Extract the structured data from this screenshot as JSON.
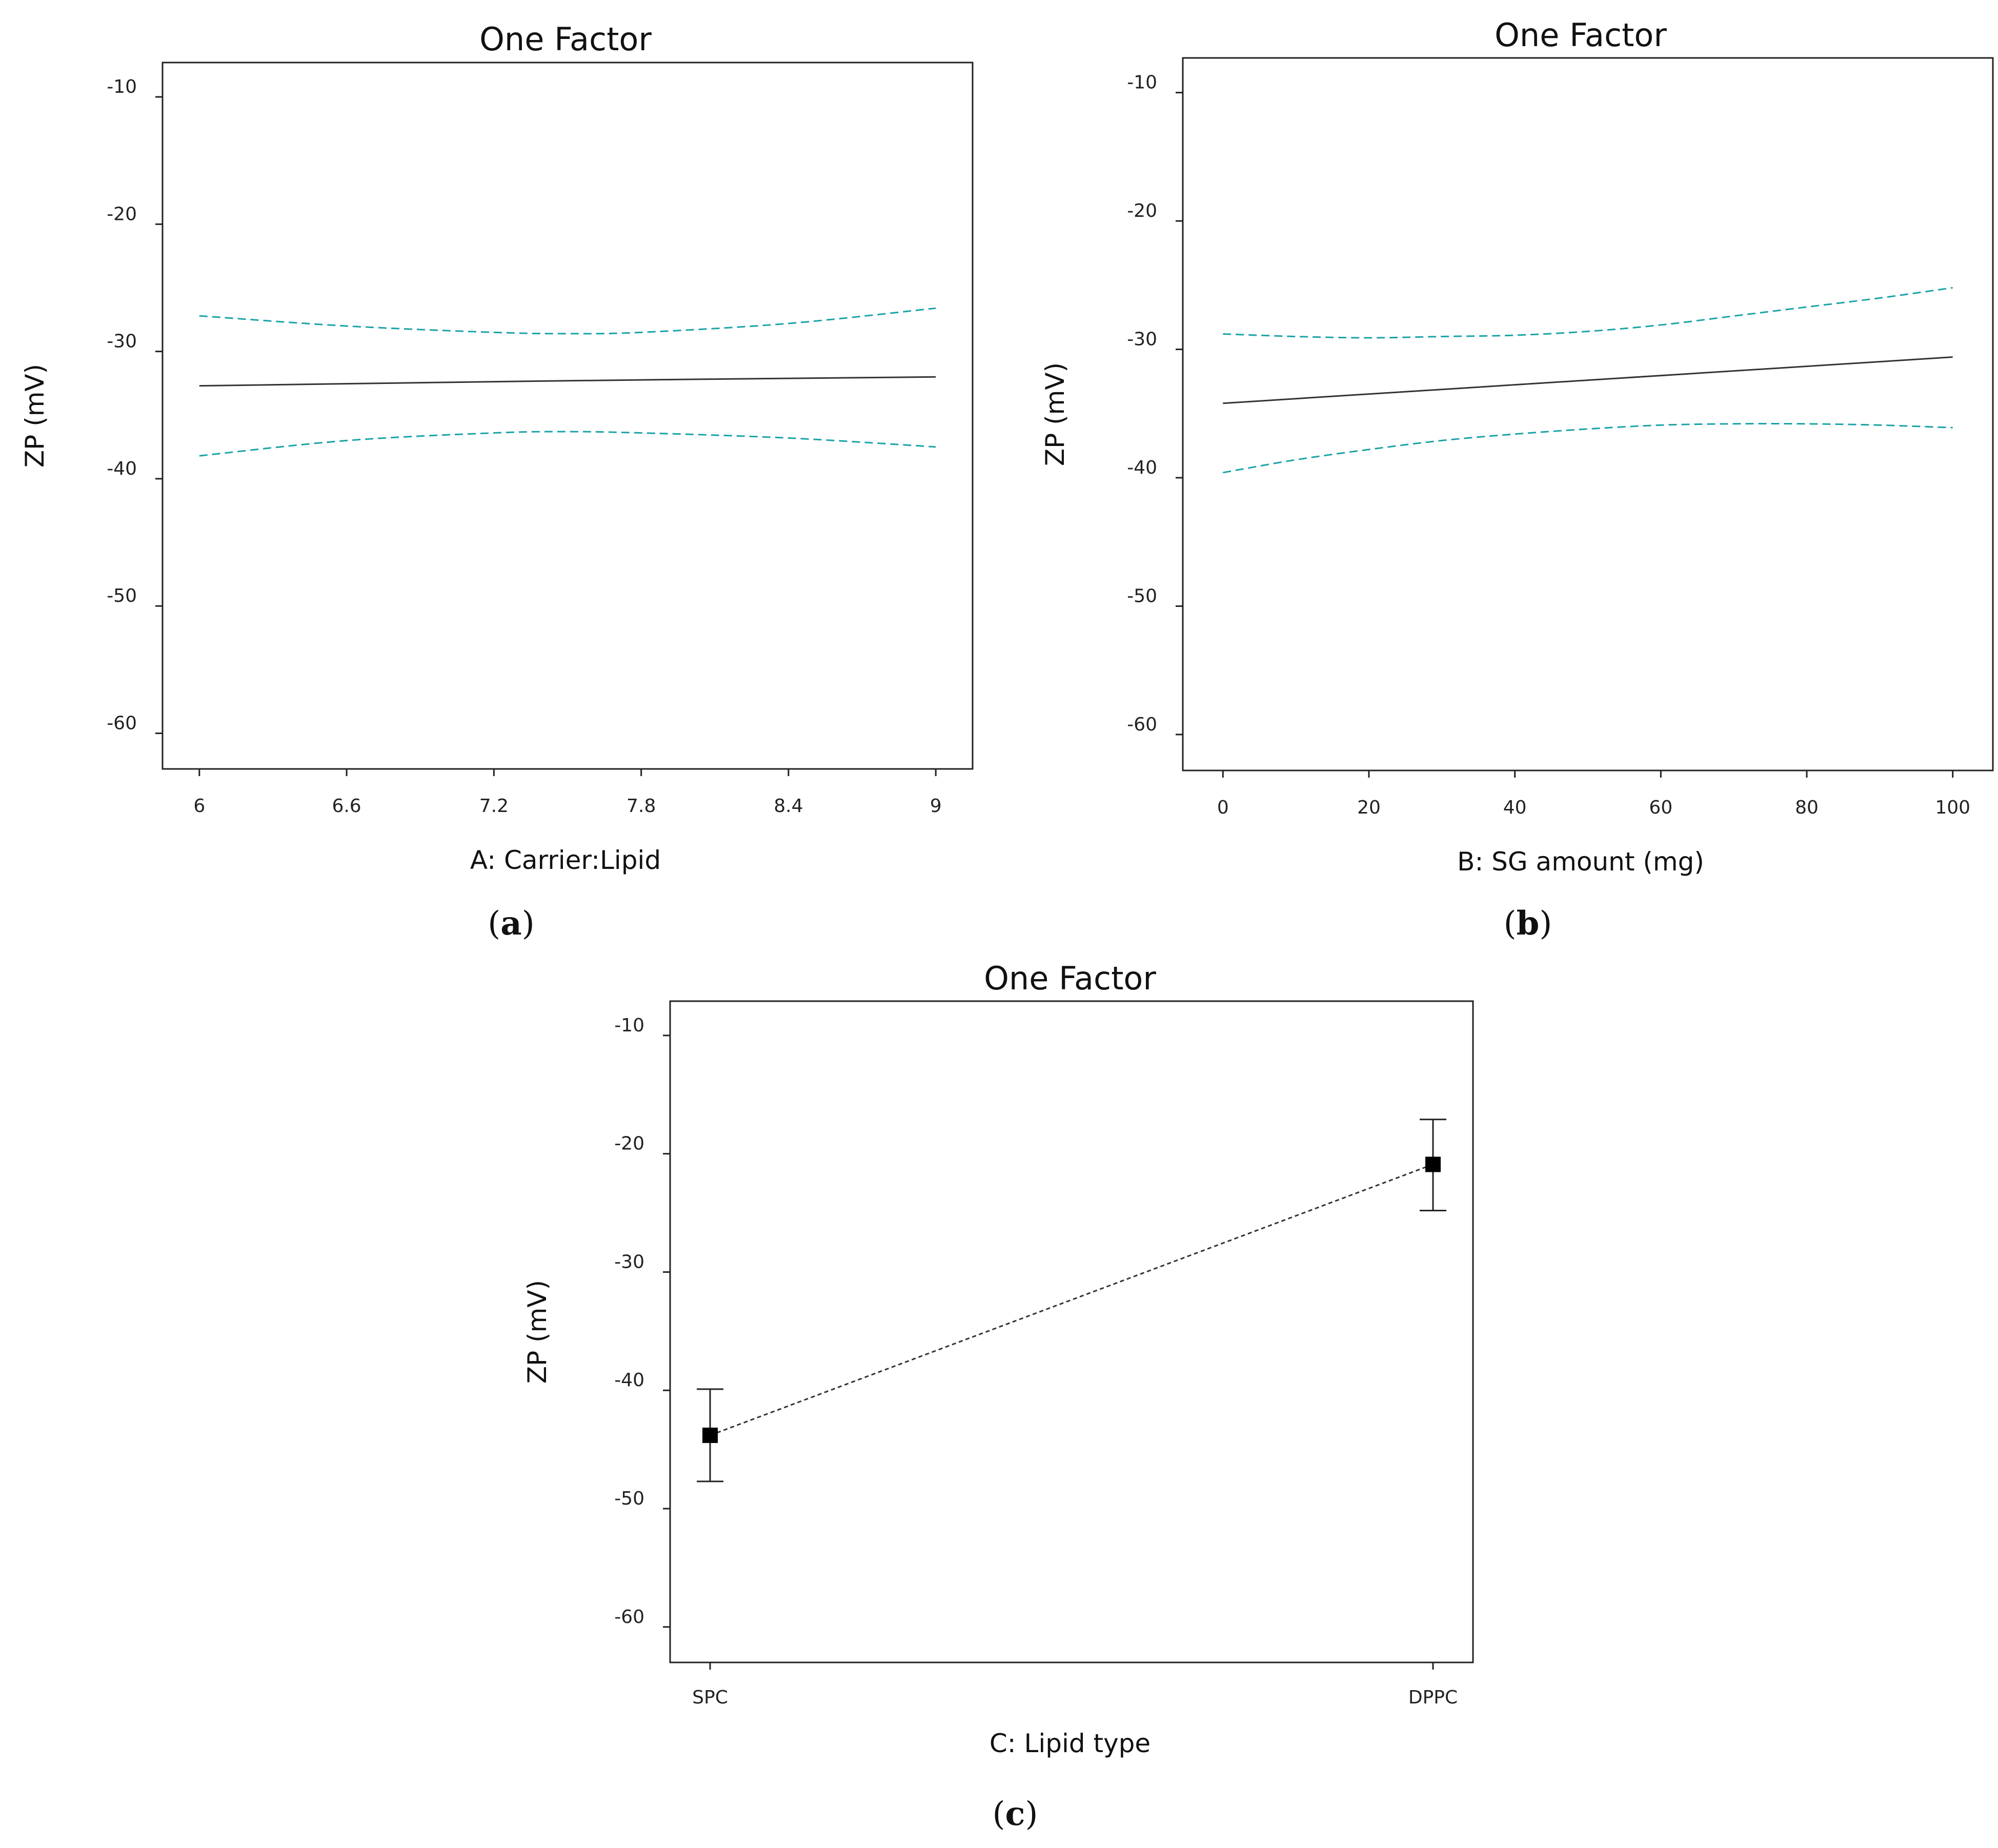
{
  "chart_data": [
    {
      "panel_label": "a",
      "type": "line",
      "title": "One Factor",
      "xlabel": "A: Carrier:Lipid",
      "ylabel": "ZP (mV)",
      "xlim": [
        5.85,
        9.15
      ],
      "ylim": [
        -62.8,
        -7.3
      ],
      "x_ticks": [
        "6",
        "6.6",
        "7.2",
        "7.8",
        "8.4",
        "9"
      ],
      "y_ticks": [
        "-10",
        "-20",
        "-30",
        "-40",
        "-50",
        "-60"
      ],
      "series": [
        {
          "name": "prediction",
          "style": "solid",
          "x": [
            6,
            7.5,
            9
          ],
          "values": [
            -32.7,
            -32.3,
            -32.0
          ]
        },
        {
          "name": "upper 95% CI",
          "style": "dashed",
          "x": [
            6,
            6.6,
            7.2,
            7.5,
            7.8,
            8.4,
            9
          ],
          "values": [
            -27.2,
            -28.0,
            -28.5,
            -28.6,
            -28.5,
            -27.8,
            -26.6
          ]
        },
        {
          "name": "lower 95% CI",
          "style": "dashed",
          "x": [
            6,
            6.6,
            7.2,
            7.5,
            7.8,
            8.4,
            9
          ],
          "values": [
            -38.2,
            -37.0,
            -36.4,
            -36.3,
            -36.4,
            -36.8,
            -37.5
          ]
        }
      ]
    },
    {
      "panel_label": "b",
      "type": "line",
      "title": "One Factor",
      "xlabel": "B: SG amount (mg)",
      "ylabel": "ZP (mV)",
      "xlim": [
        -5.5,
        105.5
      ],
      "ylim": [
        -62.8,
        -7.3
      ],
      "x_ticks": [
        "0",
        "20",
        "40",
        "60",
        "80",
        "100"
      ],
      "y_ticks": [
        "-10",
        "-20",
        "-30",
        "-40",
        "-50",
        "-60"
      ],
      "series": [
        {
          "name": "prediction",
          "style": "solid",
          "x": [
            0,
            100
          ],
          "values": [
            -34.2,
            -30.6
          ]
        },
        {
          "name": "upper 95% CI",
          "style": "dashed",
          "x": [
            0,
            10,
            20,
            30,
            40,
            50,
            60,
            70,
            80,
            90,
            100
          ],
          "values": [
            -28.8,
            -29.0,
            -29.1,
            -29.0,
            -28.9,
            -28.6,
            -28.1,
            -27.4,
            -26.7,
            -26.0,
            -25.2
          ]
        },
        {
          "name": "lower 95% CI",
          "style": "dashed",
          "x": [
            0,
            10,
            20,
            30,
            40,
            50,
            60,
            70,
            80,
            90,
            100
          ],
          "values": [
            -39.6,
            -38.6,
            -37.8,
            -37.1,
            -36.6,
            -36.2,
            -35.9,
            -35.8,
            -35.8,
            -35.9,
            -36.1
          ]
        }
      ]
    },
    {
      "panel_label": "c",
      "type": "line",
      "title": "One Factor",
      "xlabel": "C: Lipid type",
      "ylabel": "ZP (mV)",
      "ylim": [
        -63.0,
        -7.1
      ],
      "categories": [
        "SPC",
        "DPPC"
      ],
      "y_ticks": [
        "-10",
        "-20",
        "-30",
        "-40",
        "-50",
        "-60"
      ],
      "values": [
        -43.8,
        -20.9
      ],
      "error_low": [
        -47.7,
        -24.8
      ],
      "error_high": [
        -39.9,
        -17.1
      ]
    }
  ]
}
